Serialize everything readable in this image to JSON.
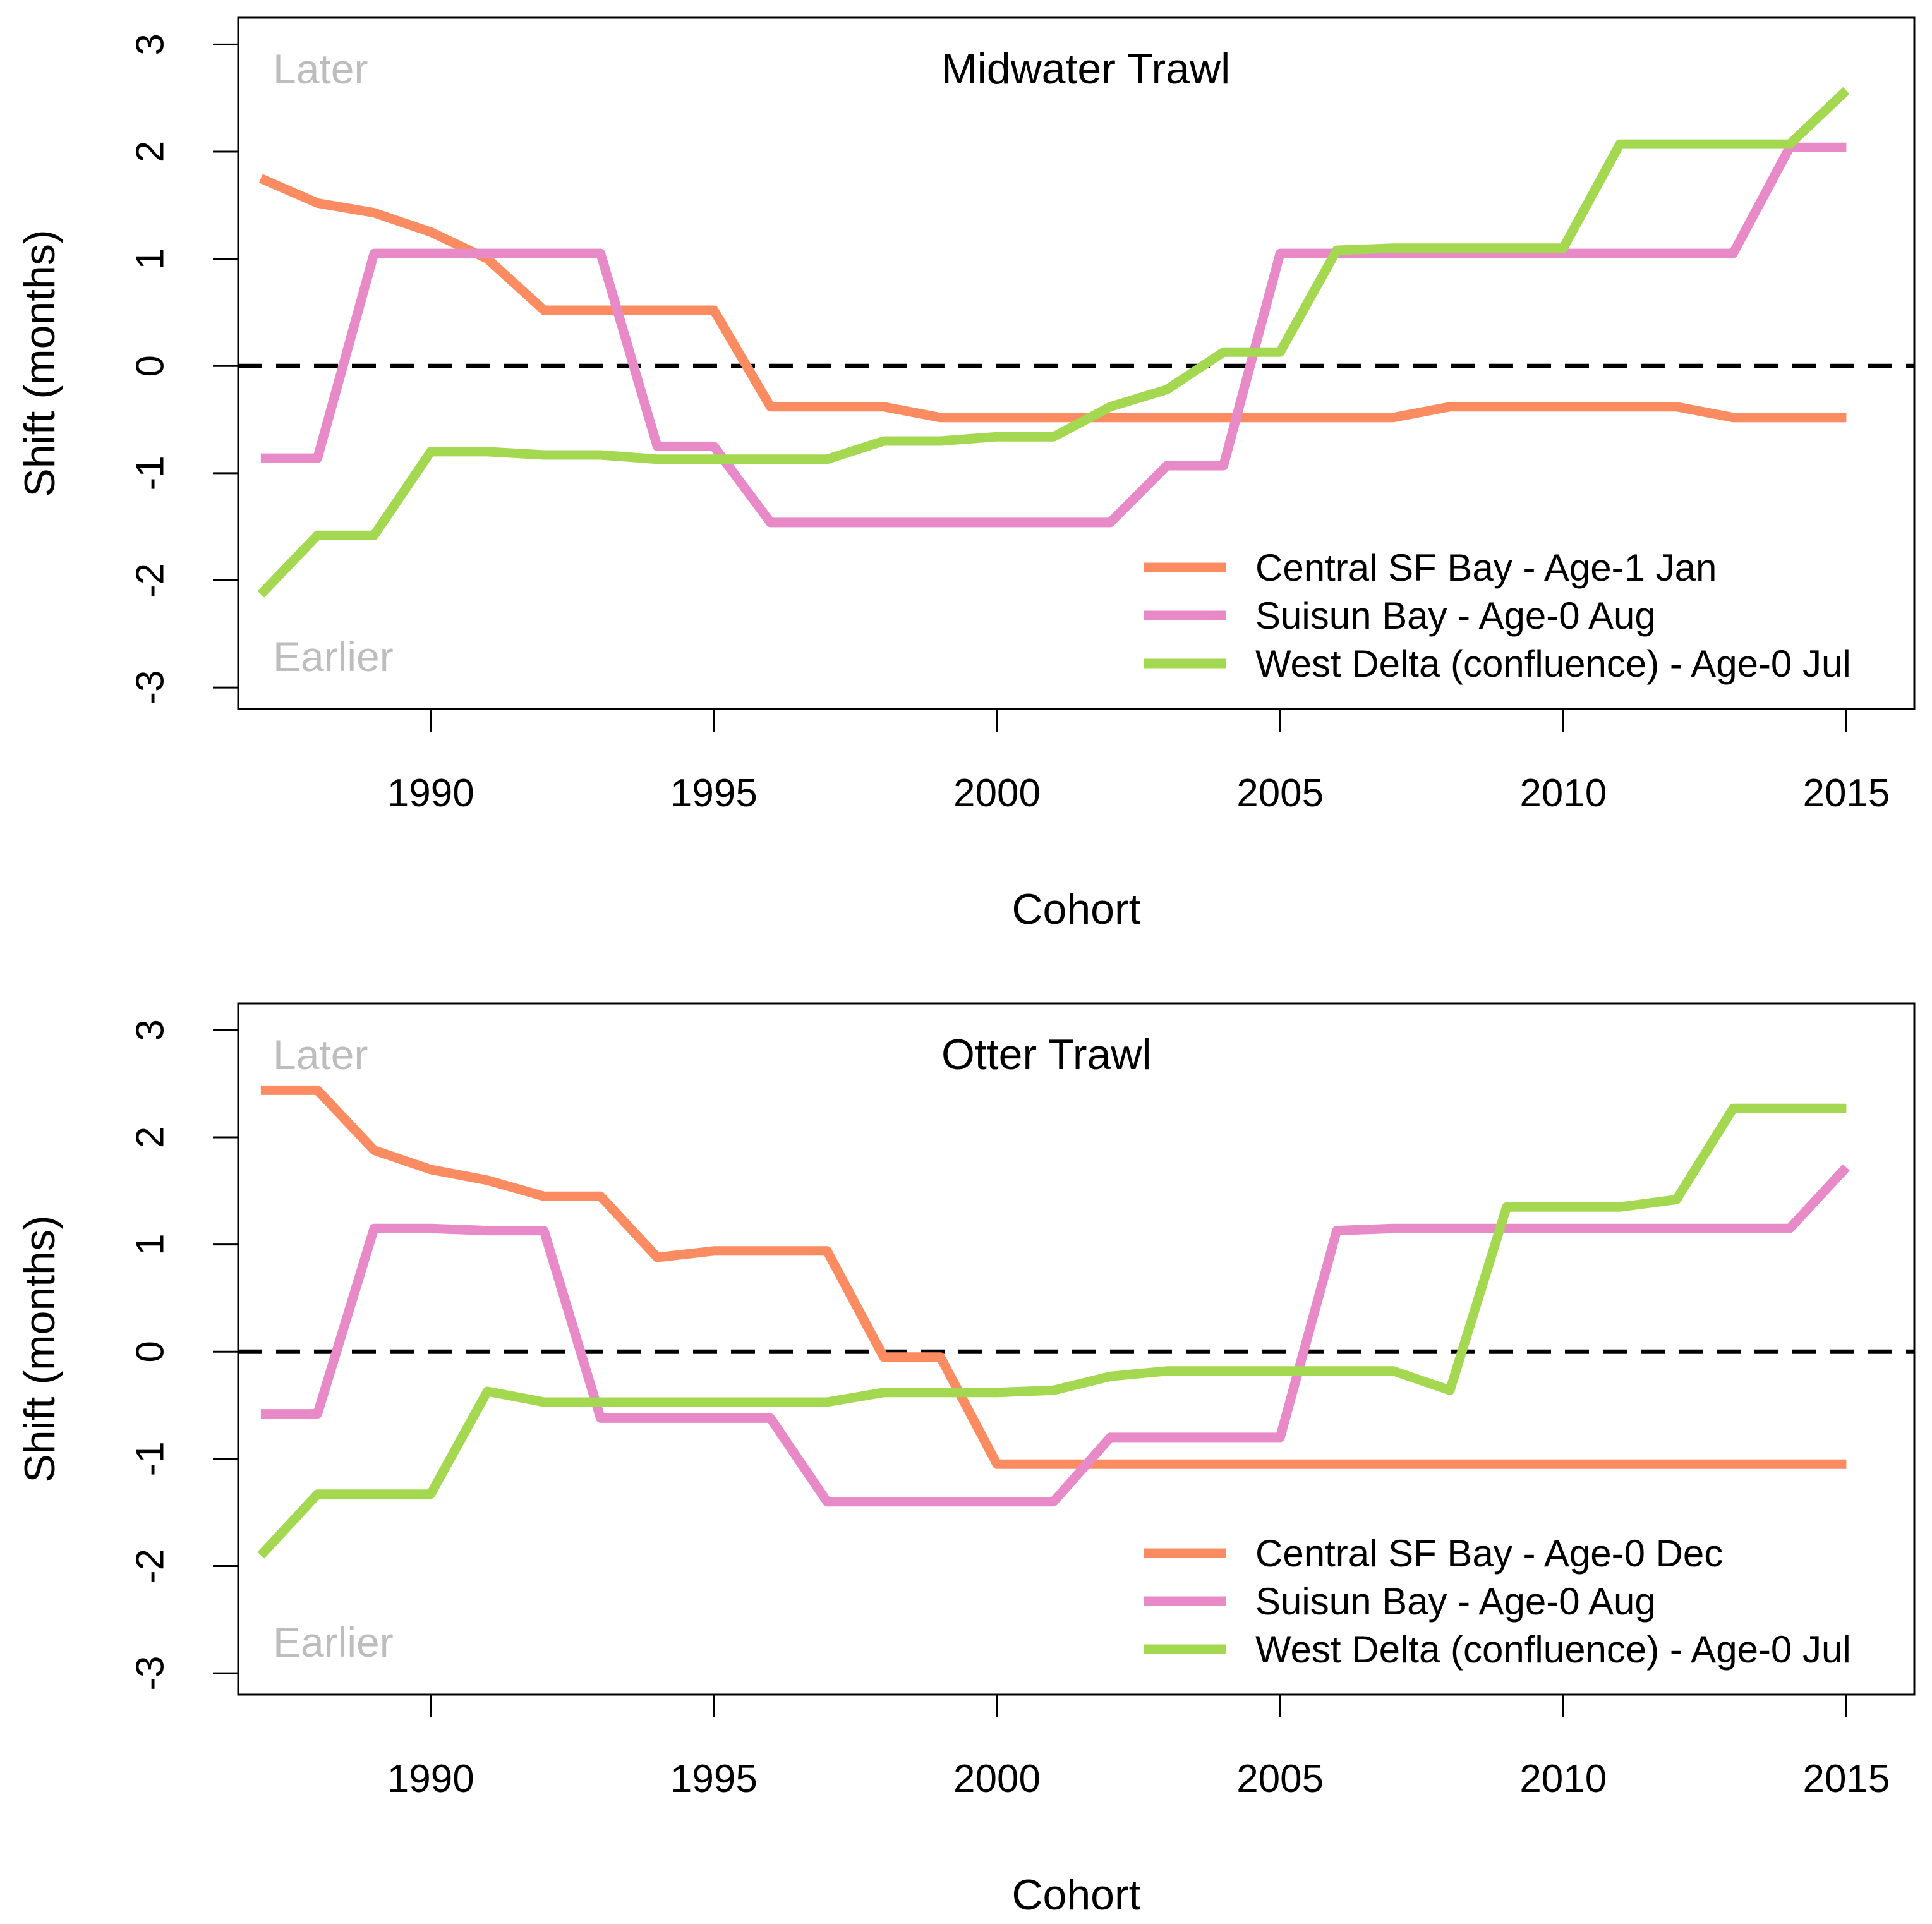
{
  "colors": {
    "central": "#fb8c61",
    "suisun": "#e889c8",
    "west": "#a5d851",
    "reference": "#000000",
    "annotation": "#bdbdbd"
  },
  "chart_data": [
    {
      "type": "line",
      "title": "Midwater Trawl",
      "xlabel": "Cohort",
      "ylabel": "Shift (months)",
      "xlim": [
        1986.6,
        2016.2
      ],
      "ylim": [
        -3.2,
        3.25
      ],
      "xticks": [
        1990,
        1995,
        2000,
        2005,
        2010,
        2015
      ],
      "yticks": [
        -3,
        -2,
        -1,
        0,
        1,
        2,
        3
      ],
      "reference_line": 0,
      "annotations": {
        "top": "Later",
        "bottom": "Earlier"
      },
      "legend_position": "bottom-right",
      "x": [
        1987,
        1988,
        1989,
        1990,
        1991,
        1992,
        1993,
        1994,
        1995,
        1996,
        1997,
        1998,
        1999,
        2000,
        2001,
        2002,
        2003,
        2004,
        2005,
        2006,
        2007,
        2008,
        2009,
        2010,
        2011,
        2012,
        2013,
        2014,
        2015
      ],
      "series": [
        {
          "name": "Central SF Bay - Age-1 Jan",
          "color_key": "central",
          "values": [
            1.75,
            1.52,
            1.43,
            1.25,
            1.0,
            0.52,
            0.52,
            0.52,
            0.52,
            -0.38,
            -0.38,
            -0.38,
            -0.48,
            -0.48,
            -0.48,
            -0.48,
            -0.48,
            -0.48,
            -0.48,
            -0.48,
            -0.48,
            -0.38,
            -0.38,
            -0.38,
            -0.38,
            -0.38,
            -0.48,
            -0.48,
            -0.48
          ]
        },
        {
          "name": "Suisun Bay - Age-0 Aug",
          "color_key": "suisun",
          "values": [
            -0.86,
            -0.86,
            1.05,
            1.05,
            1.05,
            1.05,
            1.05,
            -0.75,
            -0.75,
            -1.46,
            -1.46,
            -1.46,
            -1.46,
            -1.46,
            -1.46,
            -1.46,
            -0.93,
            -0.93,
            1.05,
            1.05,
            1.05,
            1.05,
            1.05,
            1.05,
            1.05,
            1.05,
            1.05,
            2.04,
            2.04
          ]
        },
        {
          "name": "West Delta (confluence) - Age-0 Jul",
          "color_key": "west",
          "values": [
            -2.13,
            -1.58,
            -1.58,
            -0.8,
            -0.8,
            -0.83,
            -0.83,
            -0.87,
            -0.87,
            -0.87,
            -0.87,
            -0.7,
            -0.7,
            -0.66,
            -0.66,
            -0.38,
            -0.22,
            0.13,
            0.13,
            1.08,
            1.1,
            1.1,
            1.1,
            1.1,
            2.07,
            2.07,
            2.07,
            2.07,
            2.57
          ]
        }
      ]
    },
    {
      "type": "line",
      "title": "Otter Trawl",
      "xlabel": "Cohort",
      "ylabel": "Shift (months)",
      "xlim": [
        1986.6,
        2016.2
      ],
      "ylim": [
        -3.2,
        3.25
      ],
      "xticks": [
        1990,
        1995,
        2000,
        2005,
        2010,
        2015
      ],
      "yticks": [
        -3,
        -2,
        -1,
        0,
        1,
        2,
        3
      ],
      "reference_line": 0,
      "annotations": {
        "top": "Later",
        "bottom": "Earlier"
      },
      "legend_position": "bottom-right",
      "x": [
        1987,
        1988,
        1989,
        1990,
        1991,
        1992,
        1993,
        1994,
        1995,
        1996,
        1997,
        1998,
        1999,
        2000,
        2001,
        2002,
        2003,
        2004,
        2005,
        2006,
        2007,
        2008,
        2009,
        2010,
        2011,
        2012,
        2013,
        2014,
        2015
      ],
      "series": [
        {
          "name": "Central SF Bay - Age-0 Dec",
          "color_key": "central",
          "values": [
            2.44,
            2.44,
            1.88,
            1.7,
            1.6,
            1.45,
            1.45,
            0.88,
            0.94,
            0.94,
            0.94,
            -0.05,
            -0.05,
            -1.05,
            -1.05,
            -1.05,
            -1.05,
            -1.05,
            -1.05,
            -1.05,
            -1.05,
            -1.05,
            -1.05,
            -1.05,
            -1.05,
            -1.05,
            -1.05,
            -1.05,
            -1.05
          ]
        },
        {
          "name": "Suisun Bay - Age-0 Aug",
          "color_key": "suisun",
          "values": [
            -0.58,
            -0.58,
            1.15,
            1.15,
            1.13,
            1.13,
            -0.62,
            -0.62,
            -0.62,
            -0.62,
            -1.4,
            -1.4,
            -1.4,
            -1.4,
            -1.4,
            -0.8,
            -0.8,
            -0.8,
            -0.8,
            1.13,
            1.15,
            1.15,
            1.15,
            1.15,
            1.15,
            1.15,
            1.15,
            1.15,
            1.72
          ]
        },
        {
          "name": "West Delta (confluence) - Age-0 Jul",
          "color_key": "west",
          "values": [
            -1.9,
            -1.33,
            -1.33,
            -1.33,
            -0.37,
            -0.47,
            -0.47,
            -0.47,
            -0.47,
            -0.47,
            -0.47,
            -0.38,
            -0.38,
            -0.38,
            -0.36,
            -0.23,
            -0.18,
            -0.18,
            -0.18,
            -0.18,
            -0.18,
            -0.36,
            1.35,
            1.35,
            1.35,
            1.42,
            2.27,
            2.27,
            2.27
          ]
        }
      ]
    }
  ]
}
